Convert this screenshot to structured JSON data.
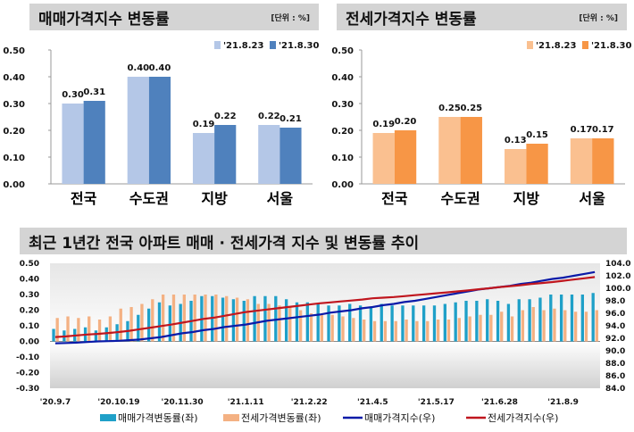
{
  "chart_data": [
    {
      "type": "bar",
      "title": "매매가격지수 변동률",
      "unit": "[단위 : %]",
      "categories": [
        "전국",
        "수도권",
        "지방",
        "서울"
      ],
      "series": [
        {
          "name": "'21.8.23",
          "values": [
            0.3,
            0.4,
            0.19,
            0.22
          ],
          "color": "#b4c7e7"
        },
        {
          "name": "'21.8.30",
          "values": [
            0.31,
            0.4,
            0.22,
            0.21
          ],
          "color": "#4f81bd"
        }
      ],
      "ylim": [
        0,
        0.5
      ],
      "yticks": [
        "0.00",
        "0.10",
        "0.20",
        "0.30",
        "0.40",
        "0.50"
      ],
      "legend": "top-right"
    },
    {
      "type": "bar",
      "title": "전세가격지수 변동률",
      "unit": "[단위 : %]",
      "categories": [
        "전국",
        "수도권",
        "지방",
        "서울"
      ],
      "series": [
        {
          "name": "'21.8.23",
          "values": [
            0.19,
            0.25,
            0.13,
            0.17
          ],
          "color": "#fac090"
        },
        {
          "name": "'21.8.30",
          "values": [
            0.2,
            0.25,
            0.15,
            0.17
          ],
          "color": "#f79646"
        }
      ],
      "ylim": [
        0,
        0.5
      ],
      "yticks": [
        "0.00",
        "0.10",
        "0.20",
        "0.30",
        "0.40",
        "0.50"
      ],
      "legend": "top-right"
    },
    {
      "type": "bar+line",
      "title": "최근 1년간 전국 아파트 매매 · 전세가격 지수 및 변동률 추이",
      "xticks": [
        "'20.9.7",
        "'20.10.19",
        "'20.11.30",
        "'21.1.11",
        "'21.2.22",
        "'21.4.5",
        "'21.5.17",
        "'21.6.28",
        "'21.8.9"
      ],
      "ylim_left": [
        -0.3,
        0.5
      ],
      "yticks_left": [
        "0.50",
        "0.40",
        "0.30",
        "0.20",
        "0.10",
        "0.00",
        "-0.10",
        "-0.20",
        "-0.30"
      ],
      "ylim_right": [
        84,
        104
      ],
      "yticks_right": [
        "104.0",
        "102.0",
        "100.0",
        "98.0",
        "96.0",
        "94.0",
        "92.0",
        "90.0",
        "88.0",
        "86.0",
        "84.0"
      ],
      "legend": "bottom",
      "series": [
        {
          "name": "매매가격변동률(좌)",
          "kind": "bar",
          "axis": "left",
          "color": "#1fa0c8",
          "values": [
            0.08,
            0.07,
            0.08,
            0.09,
            0.07,
            0.09,
            0.11,
            0.13,
            0.17,
            0.21,
            0.25,
            0.23,
            0.24,
            0.26,
            0.29,
            0.29,
            0.28,
            0.27,
            0.26,
            0.29,
            0.29,
            0.29,
            0.27,
            0.25,
            0.25,
            0.24,
            0.23,
            0.23,
            0.24,
            0.23,
            0.22,
            0.24,
            0.23,
            0.23,
            0.23,
            0.23,
            0.23,
            0.24,
            0.25,
            0.26,
            0.26,
            0.27,
            0.26,
            0.24,
            0.27,
            0.27,
            0.28,
            0.3,
            0.3,
            0.3,
            0.3,
            0.31
          ]
        },
        {
          "name": "전세가격변동률(좌)",
          "kind": "bar",
          "axis": "left",
          "color": "#f4b183",
          "values": [
            0.15,
            0.16,
            0.15,
            0.16,
            0.14,
            0.16,
            0.21,
            0.22,
            0.24,
            0.27,
            0.3,
            0.3,
            0.3,
            0.3,
            0.3,
            0.3,
            0.29,
            0.28,
            0.27,
            0.24,
            0.24,
            0.23,
            0.22,
            0.2,
            0.18,
            0.17,
            0.17,
            0.16,
            0.15,
            0.14,
            0.13,
            0.13,
            0.13,
            0.14,
            0.13,
            0.13,
            0.14,
            0.14,
            0.15,
            0.16,
            0.17,
            0.17,
            0.19,
            0.16,
            0.2,
            0.22,
            0.2,
            0.21,
            0.2,
            0.19,
            0.19,
            0.2
          ]
        },
        {
          "name": "매매가격지수(우)",
          "kind": "line",
          "axis": "right",
          "color": "#0a1aa8",
          "values": [
            91.2,
            91.25,
            91.3,
            91.4,
            91.5,
            91.55,
            91.6,
            91.7,
            91.8,
            92.0,
            92.2,
            92.5,
            92.8,
            93.0,
            93.3,
            93.5,
            93.8,
            94.0,
            94.2,
            94.5,
            94.8,
            95.0,
            95.2,
            95.4,
            95.6,
            95.8,
            96.1,
            96.3,
            96.5,
            96.8,
            97.0,
            97.3,
            97.5,
            97.8,
            98.0,
            98.3,
            98.6,
            98.9,
            99.2,
            99.5,
            99.8,
            100.0,
            100.2,
            100.4,
            100.7,
            100.9,
            101.2,
            101.5,
            101.7,
            102.0,
            102.3,
            102.6
          ]
        },
        {
          "name": "전세가격지수(우)",
          "kind": "line",
          "axis": "right",
          "color": "#c0161e",
          "values": [
            92.2,
            92.3,
            92.45,
            92.6,
            92.7,
            92.85,
            93.0,
            93.2,
            93.45,
            93.7,
            93.95,
            94.2,
            94.5,
            94.8,
            95.1,
            95.3,
            95.6,
            95.9,
            96.2,
            96.4,
            96.6,
            96.8,
            97.0,
            97.2,
            97.4,
            97.6,
            97.75,
            97.9,
            98.05,
            98.2,
            98.4,
            98.5,
            98.6,
            98.75,
            98.9,
            99.05,
            99.2,
            99.35,
            99.5,
            99.65,
            99.85,
            100.0,
            100.2,
            100.35,
            100.5,
            100.7,
            100.85,
            101.0,
            101.2,
            101.4,
            101.6,
            101.8
          ]
        }
      ]
    }
  ]
}
